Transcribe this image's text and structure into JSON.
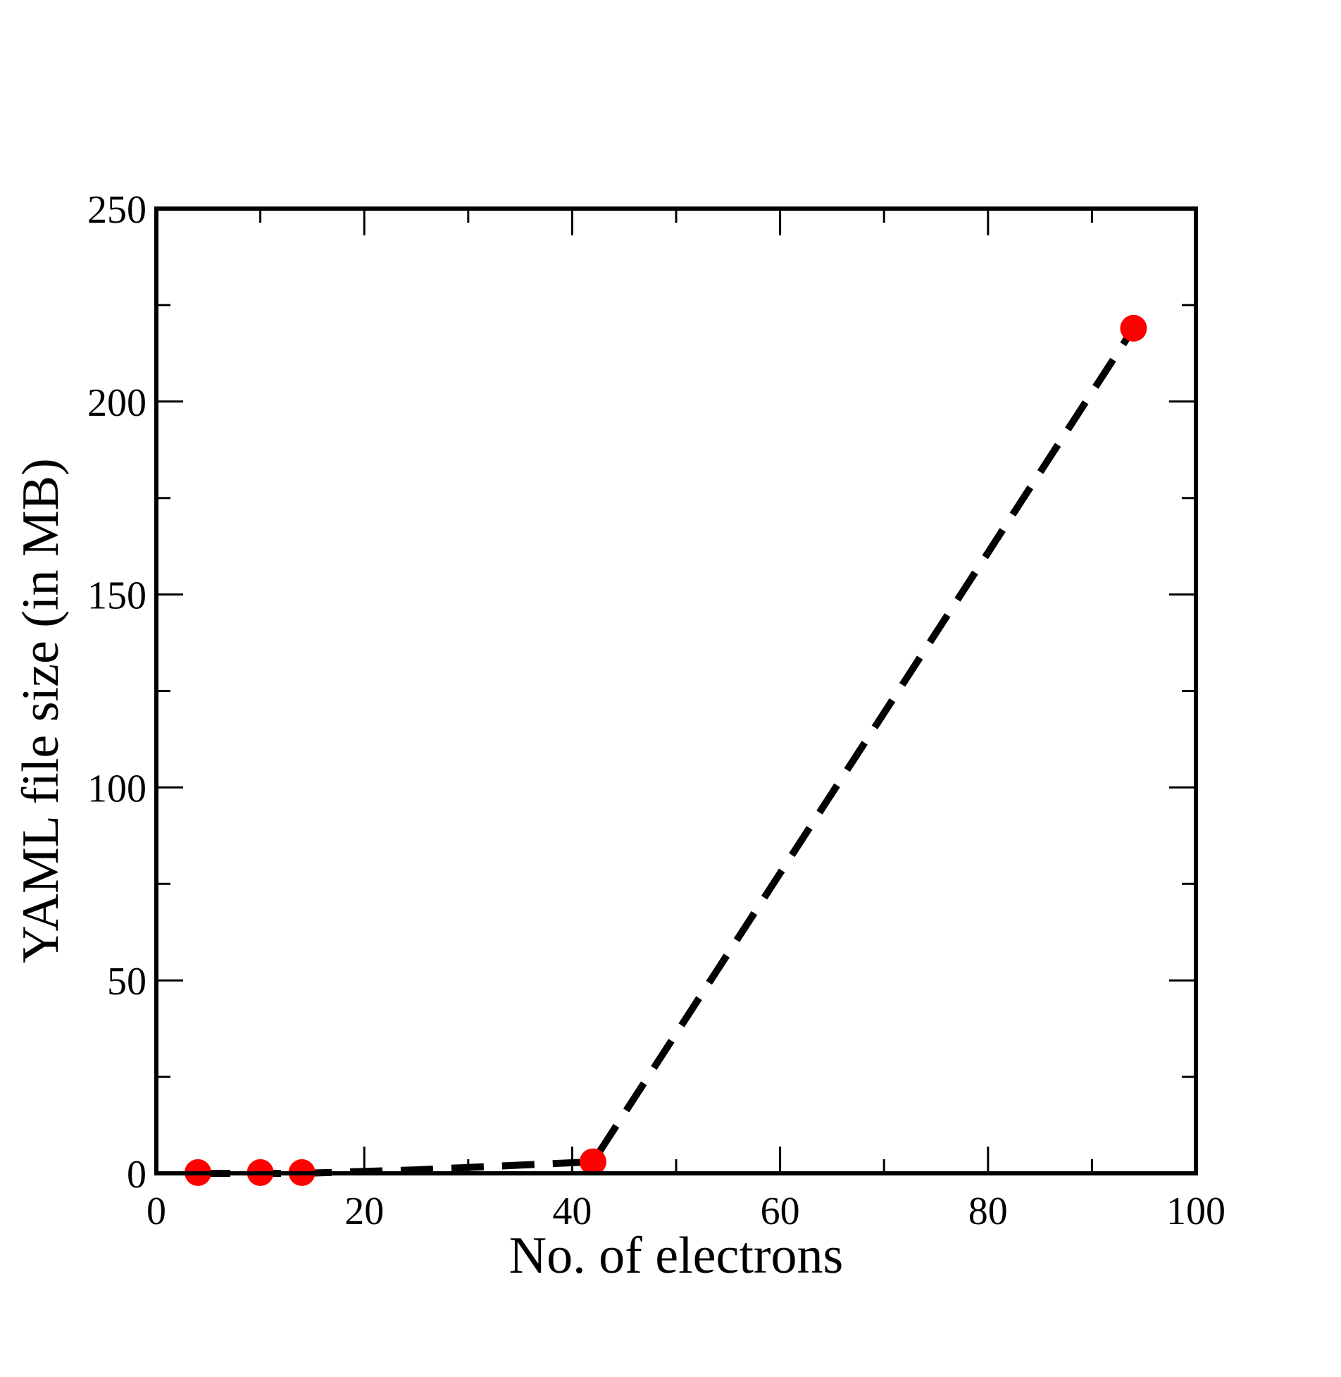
{
  "chart_data": {
    "type": "scatter",
    "title": "",
    "xlabel": "No. of electrons",
    "ylabel": "YAML file size (in MB)",
    "xlim": [
      0,
      100
    ],
    "ylim": [
      0,
      250
    ],
    "x_ticks": [
      0,
      20,
      40,
      60,
      80,
      100
    ],
    "y_ticks": [
      0,
      50,
      100,
      150,
      200,
      250
    ],
    "x_minor_step": 10,
    "y_minor_step": 25,
    "grid": false,
    "legend": "none",
    "series": [
      {
        "type": "scatter",
        "marker": "circle",
        "color": "#ff0000",
        "points": [
          {
            "x": 4,
            "y": 0.2
          },
          {
            "x": 10,
            "y": 0.2
          },
          {
            "x": 14,
            "y": 0.2
          },
          {
            "x": 42,
            "y": 3
          },
          {
            "x": 94,
            "y": 219
          }
        ]
      },
      {
        "type": "line",
        "style": "dashed",
        "color": "#000000",
        "points": [
          {
            "x": 4,
            "y": 0
          },
          {
            "x": 14,
            "y": 0
          },
          {
            "x": 25,
            "y": 0.9
          },
          {
            "x": 42,
            "y": 3
          },
          {
            "x": 94,
            "y": 219
          }
        ]
      }
    ]
  }
}
